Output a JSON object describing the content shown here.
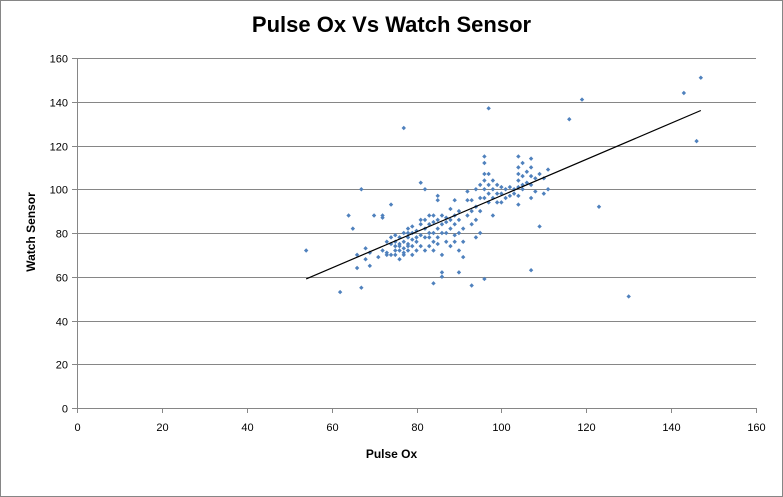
{
  "chart_data": {
    "type": "scatter",
    "title": "Pulse Ox Vs Watch Sensor",
    "xlabel": "Pulse Ox",
    "ylabel": "Watch Sensor",
    "xlim": [
      0,
      160
    ],
    "ylim": [
      0,
      160
    ],
    "xticks": [
      0,
      20,
      40,
      60,
      80,
      100,
      120,
      140,
      160
    ],
    "yticks": [
      0,
      20,
      40,
      60,
      80,
      100,
      120,
      140,
      160
    ],
    "grid": "horizontal major gridlines",
    "legend": "none",
    "colors": {
      "marker": "#4F81BD",
      "trendline": "#000000",
      "gridline": "#868686"
    },
    "trendline": {
      "type": "linear",
      "x": [
        54,
        147
      ],
      "y": [
        59,
        136
      ]
    },
    "series": [
      {
        "points": [
          [
            54,
            72
          ],
          [
            62,
            53
          ],
          [
            64,
            88
          ],
          [
            65,
            82
          ],
          [
            66,
            64
          ],
          [
            66,
            70
          ],
          [
            67,
            55
          ],
          [
            67,
            100
          ],
          [
            68,
            73
          ],
          [
            68,
            68
          ],
          [
            69,
            65
          ],
          [
            69,
            71
          ],
          [
            70,
            88
          ],
          [
            71,
            69
          ],
          [
            72,
            87
          ],
          [
            72,
            88
          ],
          [
            72,
            72
          ],
          [
            73,
            70
          ],
          [
            73,
            76
          ],
          [
            73,
            71
          ],
          [
            74,
            75
          ],
          [
            74,
            78
          ],
          [
            74,
            93
          ],
          [
            74,
            70
          ],
          [
            75,
            72
          ],
          [
            75,
            74
          ],
          [
            75,
            76
          ],
          [
            75,
            79
          ],
          [
            75,
            70
          ],
          [
            76,
            68
          ],
          [
            76,
            72
          ],
          [
            76,
            75
          ],
          [
            76,
            78
          ],
          [
            76,
            74
          ],
          [
            77,
            70
          ],
          [
            77,
            73
          ],
          [
            77,
            76
          ],
          [
            77,
            80
          ],
          [
            77,
            128
          ],
          [
            77,
            71
          ],
          [
            78,
            72
          ],
          [
            78,
            75
          ],
          [
            78,
            78
          ],
          [
            78,
            80
          ],
          [
            78,
            82
          ],
          [
            78,
            74
          ],
          [
            79,
            70
          ],
          [
            79,
            74
          ],
          [
            79,
            77
          ],
          [
            79,
            80
          ],
          [
            79,
            83
          ],
          [
            80,
            72
          ],
          [
            80,
            76
          ],
          [
            80,
            78
          ],
          [
            80,
            81
          ],
          [
            81,
            74
          ],
          [
            81,
            79
          ],
          [
            81,
            84
          ],
          [
            81,
            86
          ],
          [
            81,
            103
          ],
          [
            82,
            72
          ],
          [
            82,
            78
          ],
          [
            82,
            82
          ],
          [
            82,
            86
          ],
          [
            82,
            100
          ],
          [
            83,
            74
          ],
          [
            83,
            78
          ],
          [
            83,
            80
          ],
          [
            83,
            84
          ],
          [
            83,
            88
          ],
          [
            84,
            57
          ],
          [
            84,
            72
          ],
          [
            84,
            76
          ],
          [
            84,
            80
          ],
          [
            84,
            85
          ],
          [
            84,
            88
          ],
          [
            85,
            75
          ],
          [
            85,
            78
          ],
          [
            85,
            82
          ],
          [
            85,
            86
          ],
          [
            85,
            95
          ],
          [
            85,
            97
          ],
          [
            86,
            60
          ],
          [
            86,
            62
          ],
          [
            86,
            70
          ],
          [
            86,
            80
          ],
          [
            86,
            84
          ],
          [
            86,
            88
          ],
          [
            87,
            76
          ],
          [
            87,
            80
          ],
          [
            87,
            85
          ],
          [
            87,
            87
          ],
          [
            88,
            74
          ],
          [
            88,
            82
          ],
          [
            88,
            86
          ],
          [
            88,
            91
          ],
          [
            89,
            76
          ],
          [
            89,
            79
          ],
          [
            89,
            84
          ],
          [
            89,
            88
          ],
          [
            89,
            95
          ],
          [
            90,
            62
          ],
          [
            90,
            72
          ],
          [
            90,
            80
          ],
          [
            90,
            86
          ],
          [
            90,
            90
          ],
          [
            91,
            69
          ],
          [
            91,
            76
          ],
          [
            91,
            82
          ],
          [
            92,
            88
          ],
          [
            92,
            95
          ],
          [
            92,
            99
          ],
          [
            93,
            56
          ],
          [
            93,
            84
          ],
          [
            93,
            90
          ],
          [
            93,
            95
          ],
          [
            94,
            78
          ],
          [
            94,
            86
          ],
          [
            94,
            92
          ],
          [
            94,
            100
          ],
          [
            95,
            80
          ],
          [
            95,
            90
          ],
          [
            95,
            96
          ],
          [
            95,
            102
          ],
          [
            96,
            59
          ],
          [
            96,
            96
          ],
          [
            96,
            100
          ],
          [
            96,
            104
          ],
          [
            96,
            107
          ],
          [
            96,
            112
          ],
          [
            96,
            115
          ],
          [
            97,
            94
          ],
          [
            97,
            98
          ],
          [
            97,
            102
          ],
          [
            97,
            107
          ],
          [
            97,
            137
          ],
          [
            98,
            96
          ],
          [
            98,
            100
          ],
          [
            98,
            104
          ],
          [
            98,
            88
          ],
          [
            99,
            94
          ],
          [
            99,
            98
          ],
          [
            99,
            102
          ],
          [
            100,
            94
          ],
          [
            100,
            98
          ],
          [
            100,
            101
          ],
          [
            101,
            96
          ],
          [
            101,
            100
          ],
          [
            102,
            97
          ],
          [
            102,
            101
          ],
          [
            103,
            98
          ],
          [
            103,
            100
          ],
          [
            104,
            93
          ],
          [
            104,
            97
          ],
          [
            104,
            101
          ],
          [
            104,
            104
          ],
          [
            104,
            107
          ],
          [
            104,
            110
          ],
          [
            104,
            115
          ],
          [
            105,
            100
          ],
          [
            105,
            102
          ],
          [
            105,
            106
          ],
          [
            105,
            112
          ],
          [
            106,
            103
          ],
          [
            106,
            108
          ],
          [
            107,
            63
          ],
          [
            107,
            96
          ],
          [
            107,
            102
          ],
          [
            107,
            106
          ],
          [
            107,
            110
          ],
          [
            107,
            114
          ],
          [
            108,
            99
          ],
          [
            108,
            105
          ],
          [
            109,
            83
          ],
          [
            109,
            107
          ],
          [
            110,
            98
          ],
          [
            110,
            105
          ],
          [
            111,
            100
          ],
          [
            111,
            109
          ],
          [
            116,
            132
          ],
          [
            119,
            141
          ],
          [
            123,
            92
          ],
          [
            130,
            51
          ],
          [
            143,
            144
          ],
          [
            146,
            122
          ],
          [
            147,
            151
          ]
        ]
      }
    ]
  }
}
